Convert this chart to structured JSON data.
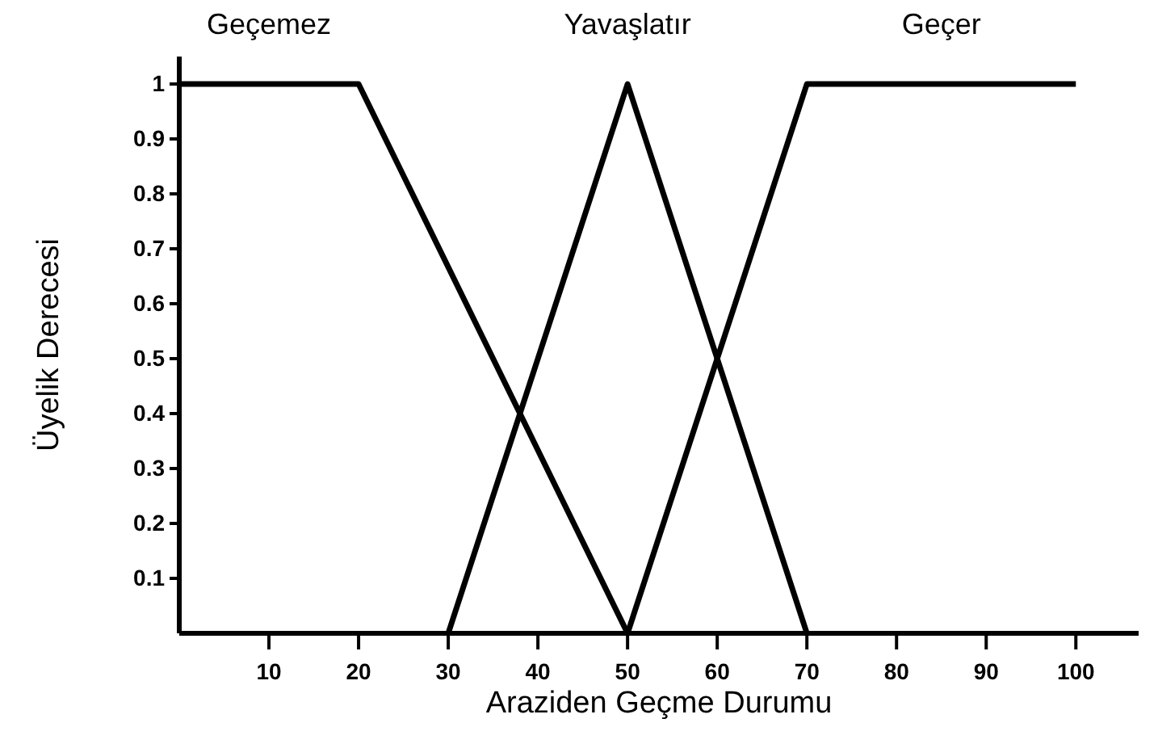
{
  "chart_data": {
    "type": "line",
    "xlabel": "Araziden Geçme Durumu",
    "ylabel": "Üyelik Derecesi",
    "xlim": [
      0,
      107
    ],
    "ylim": [
      0,
      1.05
    ],
    "xticks": [
      10,
      20,
      30,
      40,
      50,
      60,
      70,
      80,
      90,
      100
    ],
    "yticks": [
      0.1,
      0.2,
      0.3,
      0.4,
      0.5,
      0.6,
      0.7,
      0.8,
      0.9,
      1
    ],
    "series": [
      {
        "name": "Geçemez",
        "color": "#000000",
        "x": [
          0,
          20,
          50
        ],
        "values": [
          1,
          1,
          0
        ]
      },
      {
        "name": "Yavaşlatır",
        "color": "#000000",
        "x": [
          30,
          50,
          70
        ],
        "values": [
          0,
          1,
          0
        ]
      },
      {
        "name": "Geçer",
        "color": "#000000",
        "x": [
          50,
          70,
          100
        ],
        "values": [
          0,
          1,
          1
        ]
      }
    ],
    "legend": false,
    "grid": false,
    "marker": "none",
    "line_style": "solid"
  }
}
